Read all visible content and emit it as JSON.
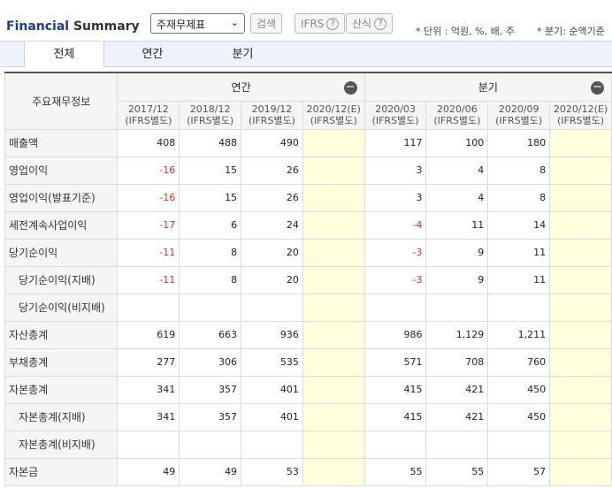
{
  "header": {
    "title_part1": "Financial",
    "title_part2": " Summary",
    "select_value": "주재무제표",
    "search_label": "검색",
    "ifrs_label": "IFRS",
    "formula_label": "산식",
    "help_glyph": "?",
    "unit_note": "* 단위 : 억원, %, 배, 주",
    "quarter_note": "* 분기: 순액기준"
  },
  "tabs": [
    {
      "label": "전체",
      "active": true
    },
    {
      "label": "연간",
      "active": false
    },
    {
      "label": "분기",
      "active": false
    }
  ],
  "table": {
    "row_header": "주요재무정보",
    "group_annual": "연간",
    "group_quarter": "분기",
    "collapse_glyph": "−",
    "columns": [
      {
        "period": "2017/12",
        "basis": "(IFRS별도)"
      },
      {
        "period": "2018/12",
        "basis": "(IFRS별도)"
      },
      {
        "period": "2019/12",
        "basis": "(IFRS별도)"
      },
      {
        "period": "2020/12(E)",
        "basis": "(IFRS별도)"
      },
      {
        "period": "2020/03",
        "basis": "(IFRS별도)"
      },
      {
        "period": "2020/06",
        "basis": "(IFRS별도)"
      },
      {
        "period": "2020/09",
        "basis": "(IFRS별도)"
      },
      {
        "period": "2020/12(E)",
        "basis": "(IFRS별도)"
      }
    ],
    "rows": [
      {
        "label": "매출액",
        "sub": false,
        "values": [
          "408",
          "488",
          "490",
          "",
          "117",
          "100",
          "180",
          ""
        ]
      },
      {
        "label": "영업이익",
        "sub": false,
        "values": [
          "-16",
          "15",
          "26",
          "",
          "3",
          "4",
          "8",
          ""
        ]
      },
      {
        "label": "영업이익(발표기준)",
        "sub": false,
        "values": [
          "-16",
          "15",
          "26",
          "",
          "3",
          "4",
          "8",
          ""
        ]
      },
      {
        "label": "세전계속사업이익",
        "sub": false,
        "values": [
          "-17",
          "6",
          "24",
          "",
          "-4",
          "11",
          "14",
          ""
        ]
      },
      {
        "label": "당기순이익",
        "sub": false,
        "values": [
          "-11",
          "8",
          "20",
          "",
          "-3",
          "9",
          "11",
          ""
        ]
      },
      {
        "label": "당기순이익(지배)",
        "sub": true,
        "values": [
          "-11",
          "8",
          "20",
          "",
          "-3",
          "9",
          "11",
          ""
        ]
      },
      {
        "label": "당기순이익(비지배)",
        "sub": true,
        "values": [
          "",
          "",
          "",
          "",
          "",
          "",
          "",
          ""
        ]
      },
      {
        "label": "자산총계",
        "sub": false,
        "values": [
          "619",
          "663",
          "936",
          "",
          "986",
          "1,129",
          "1,211",
          ""
        ]
      },
      {
        "label": "부채총계",
        "sub": false,
        "values": [
          "277",
          "306",
          "535",
          "",
          "571",
          "708",
          "760",
          ""
        ]
      },
      {
        "label": "자본총계",
        "sub": false,
        "values": [
          "341",
          "357",
          "401",
          "",
          "415",
          "421",
          "450",
          ""
        ]
      },
      {
        "label": "자본총계(지배)",
        "sub": true,
        "values": [
          "341",
          "357",
          "401",
          "",
          "415",
          "421",
          "450",
          ""
        ]
      },
      {
        "label": "자본총계(비지배)",
        "sub": true,
        "values": [
          "",
          "",
          "",
          "",
          "",
          "",
          "",
          ""
        ]
      },
      {
        "label": "자본금",
        "sub": false,
        "values": [
          "49",
          "49",
          "53",
          "",
          "55",
          "55",
          "57",
          ""
        ]
      }
    ]
  }
}
